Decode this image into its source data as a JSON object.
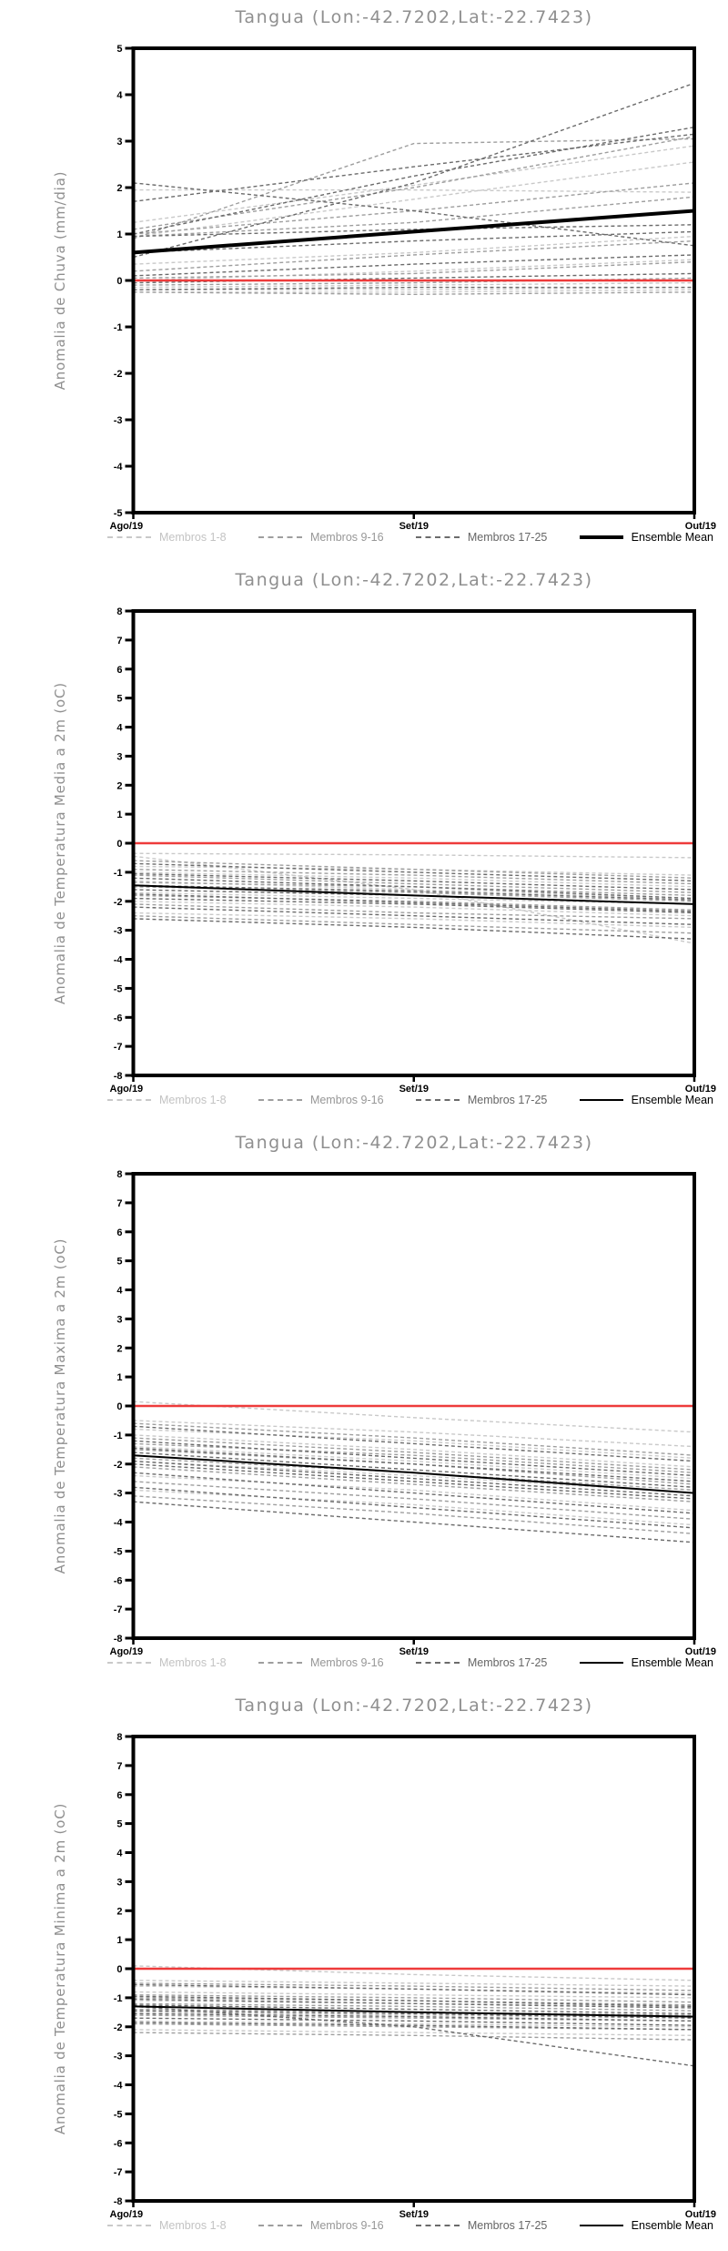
{
  "station": {
    "name": "Tangua",
    "lon": "-42.7202",
    "lat": "-22.7423"
  },
  "colors": {
    "membros_1_8": "#c9c9c9",
    "membros_9_16": "#9e9e9e",
    "membros_17_25": "#6b6b6b",
    "ensemble_mean": "#000000",
    "zero_reference_line": "#ee3b3b",
    "axis": "#000000",
    "title_text": "#8f8f8f"
  },
  "legend": {
    "items": [
      {
        "label": "Membros 1-8",
        "color": "#c9c9c9",
        "style": "dashed"
      },
      {
        "label": "Membros 9-16",
        "color": "#9e9e9e",
        "style": "dashed"
      },
      {
        "label": "Membros 17-25",
        "color": "#6b6b6b",
        "style": "dashed"
      },
      {
        "label": "Ensemble Mean",
        "color": "#000000",
        "style": "solid"
      }
    ]
  },
  "chart_data": [
    {
      "type": "line",
      "title": "Tangua (Lon:-42.7202,Lat:-22.7423)",
      "ylabel": "Anomalia de Chuva (mm/dia)",
      "x_categories": [
        "Ago/19",
        "Set/19",
        "Out/19"
      ],
      "ylim": [
        -5,
        5
      ],
      "ytick_step": 1,
      "grid": false,
      "legend_position": "bottom",
      "zero_line": {
        "value": 0,
        "color": "#ee3b3b"
      },
      "series": [
        {
          "name": "Membros 1-8",
          "color": "#c9c9c9",
          "dash": true,
          "width": 1.4,
          "members": [
            [
              1.95,
              1.95,
              1.9
            ],
            [
              1.25,
              2.05,
              2.9
            ],
            [
              0.95,
              1.75,
              2.55
            ],
            [
              0.35,
              0.6,
              0.95
            ],
            [
              0.0,
              0.2,
              0.45
            ],
            [
              -0.15,
              -0.1,
              -0.05
            ],
            [
              -0.2,
              -0.2,
              -0.15
            ],
            [
              -0.25,
              -0.25,
              -0.2
            ]
          ]
        },
        {
          "name": "Membros 9-16",
          "color": "#9e9e9e",
          "dash": true,
          "width": 1.4,
          "members": [
            [
              1.1,
              2.0,
              3.1
            ],
            [
              0.9,
              2.95,
              3.05
            ],
            [
              1.0,
              1.5,
              2.1
            ],
            [
              0.95,
              1.25,
              1.8
            ],
            [
              0.2,
              0.55,
              0.85
            ],
            [
              0.05,
              0.15,
              0.4
            ],
            [
              -0.1,
              -0.05,
              0.05
            ],
            [
              -0.25,
              -0.3,
              -0.25
            ]
          ]
        },
        {
          "name": "Membros 17-25",
          "color": "#6b6b6b",
          "dash": true,
          "width": 1.4,
          "members": [
            [
              2.1,
              1.5,
              0.75
            ],
            [
              1.0,
              2.25,
              3.3
            ],
            [
              0.5,
              2.1,
              4.25
            ],
            [
              1.7,
              2.45,
              3.15
            ],
            [
              0.95,
              1.1,
              1.2
            ],
            [
              0.6,
              0.85,
              1.05
            ],
            [
              0.1,
              0.35,
              0.55
            ],
            [
              -0.05,
              0.05,
              0.15
            ],
            [
              -0.2,
              -0.15,
              -0.15
            ]
          ]
        },
        {
          "name": "Ensemble Mean",
          "color": "#000000",
          "dash": false,
          "width": 4,
          "members": [
            [
              0.6,
              1.05,
              1.5
            ]
          ]
        }
      ]
    },
    {
      "type": "line",
      "title": "Tangua (Lon:-42.7202,Lat:-22.7423)",
      "ylabel": "Anomalia de Temperatura Media a 2m (oC)",
      "x_categories": [
        "Ago/19",
        "Set/19",
        "Out/19"
      ],
      "ylim": [
        -8,
        8
      ],
      "ytick_step": 1,
      "grid": false,
      "legend_position": "bottom",
      "zero_line": {
        "value": 0,
        "color": "#ee3b3b"
      },
      "series": [
        {
          "name": "Membros 1-8",
          "color": "#c9c9c9",
          "dash": true,
          "width": 1.4,
          "members": [
            [
              -0.35,
              -0.4,
              -0.5
            ],
            [
              -0.45,
              -1.6,
              -3.45
            ],
            [
              -1.0,
              -1.2,
              -1.5
            ],
            [
              -1.3,
              -1.6,
              -1.9
            ],
            [
              -1.7,
              -1.9,
              -2.1
            ],
            [
              -2.0,
              -2.2,
              -2.5
            ],
            [
              -2.4,
              -2.6,
              -2.9
            ],
            [
              -0.8,
              -0.9,
              -1.1
            ]
          ]
        },
        {
          "name": "Membros 9-16",
          "color": "#9e9e9e",
          "dash": true,
          "width": 1.4,
          "members": [
            [
              -0.6,
              -0.9,
              -1.2
            ],
            [
              -1.1,
              -1.4,
              -1.7
            ],
            [
              -1.5,
              -1.7,
              -2.0
            ],
            [
              -1.8,
              -2.0,
              -2.3
            ],
            [
              -2.1,
              -2.4,
              -2.6
            ],
            [
              -2.5,
              -2.8,
              -3.1
            ],
            [
              -1.35,
              -1.5,
              -1.8
            ],
            [
              -0.9,
              -1.1,
              -1.4
            ]
          ]
        },
        {
          "name": "Membros 17-25",
          "color": "#6b6b6b",
          "dash": true,
          "width": 1.4,
          "members": [
            [
              -0.7,
              -1.0,
              -1.3
            ],
            [
              -1.2,
              -1.5,
              -1.9
            ],
            [
              -1.6,
              -1.8,
              -2.1
            ],
            [
              -1.9,
              -2.1,
              -2.4
            ],
            [
              -2.2,
              -2.5,
              -2.8
            ],
            [
              -2.6,
              -2.9,
              -3.3
            ],
            [
              -1.45,
              -1.65,
              -1.95
            ],
            [
              -1.05,
              -1.3,
              -1.6
            ],
            [
              -1.75,
              -2.05,
              -2.35
            ]
          ]
        },
        {
          "name": "Ensemble Mean",
          "color": "#000000",
          "dash": false,
          "width": 2,
          "members": [
            [
              -1.45,
              -1.8,
              -2.1
            ]
          ]
        }
      ]
    },
    {
      "type": "line",
      "title": "Tangua (Lon:-42.7202,Lat:-22.7423)",
      "ylabel": "Anomalia de Temperatura Maxima a 2m (oC)",
      "x_categories": [
        "Ago/19",
        "Set/19",
        "Out/19"
      ],
      "ylim": [
        -8,
        8
      ],
      "ytick_step": 1,
      "grid": false,
      "legend_position": "bottom",
      "zero_line": {
        "value": 0,
        "color": "#ee3b3b"
      },
      "series": [
        {
          "name": "Membros 1-8",
          "color": "#c9c9c9",
          "dash": true,
          "width": 1.4,
          "members": [
            [
              0.15,
              -0.4,
              -0.9
            ],
            [
              -0.5,
              -0.9,
              -1.4
            ],
            [
              -1.0,
              -1.5,
              -2.1
            ],
            [
              -1.4,
              -1.9,
              -2.5
            ],
            [
              -1.9,
              -2.4,
              -3.0
            ],
            [
              -2.4,
              -2.9,
              -3.6
            ],
            [
              -2.9,
              -3.4,
              -4.1
            ],
            [
              -0.8,
              -1.2,
              -1.8
            ]
          ]
        },
        {
          "name": "Membros 9-16",
          "color": "#9e9e9e",
          "dash": true,
          "width": 1.4,
          "members": [
            [
              -0.6,
              -1.1,
              -1.7
            ],
            [
              -1.1,
              -1.6,
              -2.2
            ],
            [
              -1.5,
              -2.0,
              -2.7
            ],
            [
              -1.8,
              -2.3,
              -2.9
            ],
            [
              -2.1,
              -2.7,
              -3.3
            ],
            [
              -2.6,
              -3.2,
              -3.9
            ],
            [
              -3.1,
              -3.7,
              -4.4
            ],
            [
              -1.3,
              -1.7,
              -2.3
            ]
          ]
        },
        {
          "name": "Membros 17-25",
          "color": "#6b6b6b",
          "dash": true,
          "width": 1.4,
          "members": [
            [
              -0.7,
              -1.3,
              -1.9
            ],
            [
              -1.2,
              -1.8,
              -2.4
            ],
            [
              -1.6,
              -2.2,
              -2.8
            ],
            [
              -2.0,
              -2.6,
              -3.2
            ],
            [
              -2.3,
              -3.0,
              -3.7
            ],
            [
              -2.8,
              -3.5,
              -4.2
            ],
            [
              -3.3,
              -4.0,
              -4.7
            ],
            [
              -1.45,
              -2.0,
              -2.6
            ],
            [
              -1.9,
              -2.5,
              -3.1
            ]
          ]
        },
        {
          "name": "Ensemble Mean",
          "color": "#000000",
          "dash": false,
          "width": 2,
          "members": [
            [
              -1.7,
              -2.3,
              -3.0
            ]
          ]
        }
      ]
    },
    {
      "type": "line",
      "title": "Tangua (Lon:-42.7202,Lat:-22.7423)",
      "ylabel": "Anomalia de Temperatura Minima a 2m (oC)",
      "x_categories": [
        "Ago/19",
        "Set/19",
        "Out/19"
      ],
      "ylim": [
        -8,
        8
      ],
      "ytick_step": 1,
      "grid": false,
      "legend_position": "bottom",
      "zero_line": {
        "value": 0,
        "color": "#ee3b3b"
      },
      "series": [
        {
          "name": "Membros 1-8",
          "color": "#c9c9c9",
          "dash": true,
          "width": 1.4,
          "members": [
            [
              0.1,
              -0.2,
              -0.4
            ],
            [
              -0.4,
              -0.5,
              -0.6
            ],
            [
              -0.8,
              -0.9,
              -1.0
            ],
            [
              -1.1,
              -1.2,
              -1.3
            ],
            [
              -1.5,
              -1.6,
              -1.7
            ],
            [
              -1.8,
              -1.9,
              -2.0
            ],
            [
              -2.1,
              -2.2,
              -2.3
            ],
            [
              -0.6,
              -0.7,
              -0.85
            ]
          ]
        },
        {
          "name": "Membros 9-16",
          "color": "#9e9e9e",
          "dash": true,
          "width": 1.4,
          "members": [
            [
              -0.5,
              -0.6,
              -0.75
            ],
            [
              -0.9,
              -1.0,
              -1.15
            ],
            [
              -1.2,
              -1.3,
              -1.45
            ],
            [
              -1.6,
              -1.7,
              -1.8
            ],
            [
              -1.9,
              -2.0,
              -2.1
            ],
            [
              -2.2,
              -2.3,
              -2.45
            ],
            [
              -1.0,
              -1.1,
              -1.25
            ],
            [
              -1.4,
              -1.5,
              -1.6
            ]
          ]
        },
        {
          "name": "Membros 17-25",
          "color": "#6b6b6b",
          "dash": true,
          "width": 1.4,
          "members": [
            [
              -0.55,
              -0.7,
              -0.9
            ],
            [
              -0.95,
              -1.1,
              -1.3
            ],
            [
              -1.25,
              -1.4,
              -1.55
            ],
            [
              -1.55,
              -1.65,
              -1.8
            ],
            [
              -1.85,
              -1.95,
              -2.1
            ],
            [
              -1.3,
              -2.0,
              -3.35
            ],
            [
              -1.05,
              -1.2,
              -1.35
            ],
            [
              -1.45,
              -1.55,
              -1.7
            ],
            [
              -1.7,
              -1.8,
              -1.95
            ]
          ]
        },
        {
          "name": "Ensemble Mean",
          "color": "#000000",
          "dash": false,
          "width": 2,
          "members": [
            [
              -1.3,
              -1.5,
              -1.65
            ]
          ]
        }
      ]
    }
  ]
}
